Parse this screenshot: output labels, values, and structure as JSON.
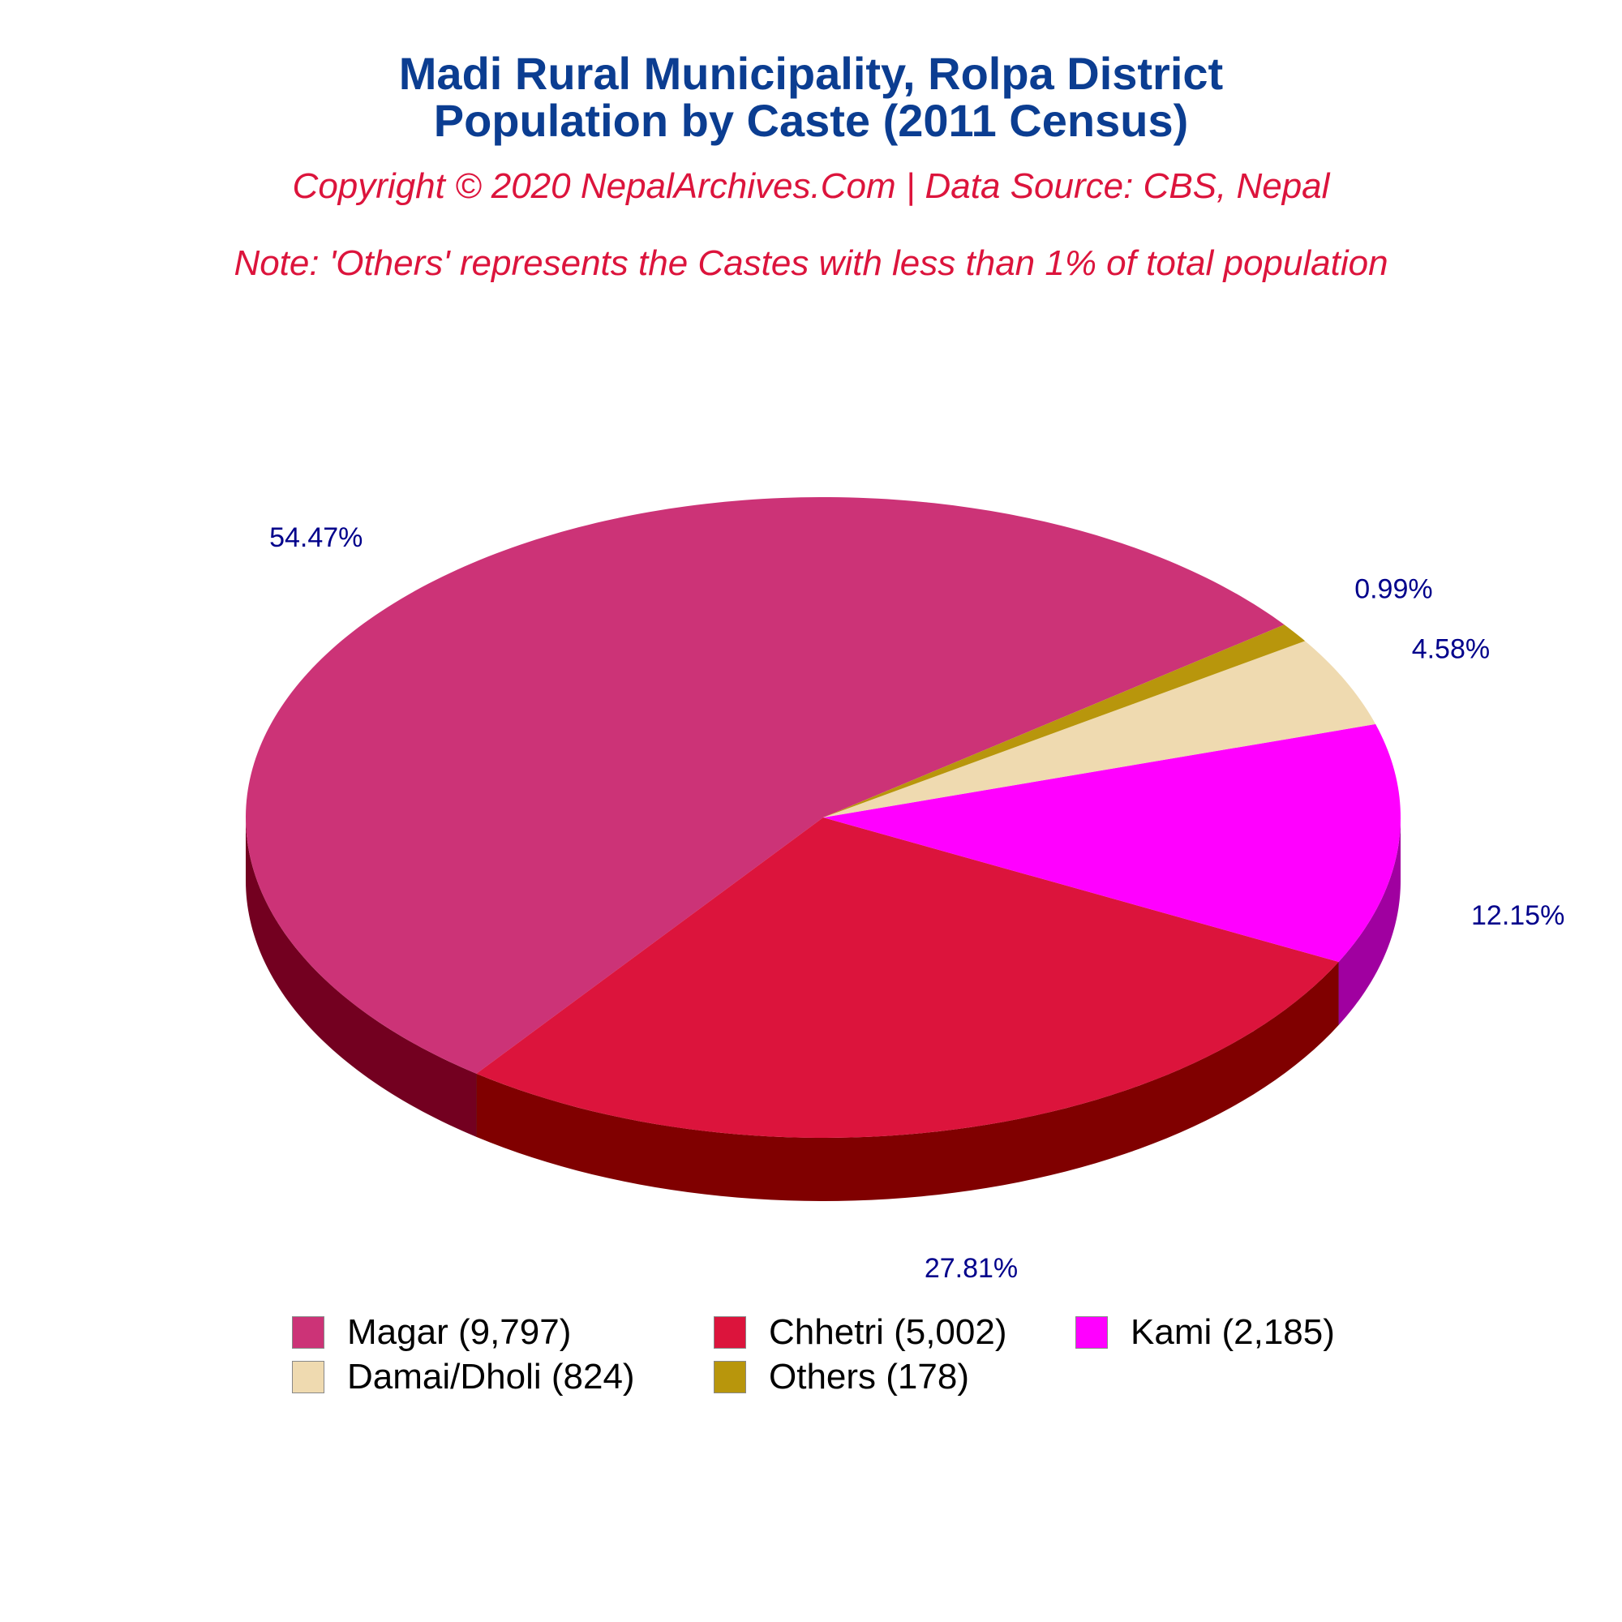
{
  "title": {
    "line1": "Madi Rural Municipality, Rolpa District",
    "line2": "Population by Caste (2011 Census)"
  },
  "subtitle": "Copyright © 2020 NepalArchives.Com | Data Source: CBS, Nepal",
  "note": "Note: 'Others' represents the Castes with less than 1% of total population",
  "chart_data": {
    "type": "pie",
    "style": "3d",
    "legend_position": "bottom",
    "slices": [
      {
        "name": "Magar",
        "value": 9797,
        "percent_label": "54.47%",
        "legend_label": "Magar (9,797)",
        "color": "#cc3377",
        "side_color": "#730020"
      },
      {
        "name": "Chhetri",
        "value": 5002,
        "percent_label": "27.81%",
        "legend_label": "Chhetri (5,002)",
        "color": "#dc143c",
        "side_color": "#800000"
      },
      {
        "name": "Kami",
        "value": 2185,
        "percent_label": "12.15%",
        "legend_label": "Kami (2,185)",
        "color": "#ff00ff",
        "side_color": "#a000a0"
      },
      {
        "name": "Damai/Dholi",
        "value": 824,
        "percent_label": "4.58%",
        "legend_label": "Damai/Dholi (824)",
        "color": "#efdab0",
        "side_color": "#b8a57a"
      },
      {
        "name": "Others",
        "value": 178,
        "percent_label": "0.99%",
        "legend_label": "Others (178)",
        "color": "#b8960c",
        "side_color": "#7a6308"
      }
    ]
  }
}
